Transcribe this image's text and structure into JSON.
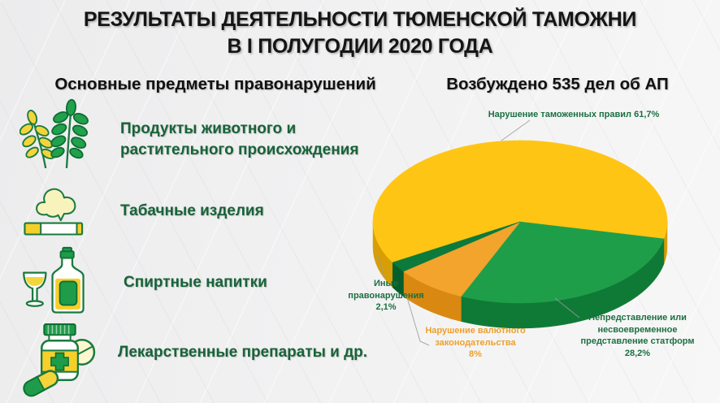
{
  "title": {
    "line1": "РЕЗУЛЬТАТЫ ДЕЯТЕЛЬНОСТИ ТЮМЕНСКОЙ ТАМОЖНИ",
    "line2": "В I ПОЛУГОДИИ 2020 ГОДА"
  },
  "left_panel": {
    "heading": "Основные предметы правонарушений",
    "items": [
      {
        "icon": "plant-leaves-icon",
        "label": "Продукты животного и растительного происхождения"
      },
      {
        "icon": "cigarette-icon",
        "label": "Табачные изделия"
      },
      {
        "icon": "alcohol-bottle-glass-icon",
        "label": "Спиртные напитки"
      },
      {
        "icon": "medicine-pills-icon",
        "label": "Лекарственные препараты и др."
      }
    ]
  },
  "right_panel": {
    "heading": "Возбуждено 535 дел об АП"
  },
  "chart_data": {
    "type": "pie",
    "style": "3d",
    "title": "Возбуждено 535 дел об АП",
    "total_cases": 535,
    "legend_position": "callouts",
    "slices": [
      {
        "label": "Нарушение таможенных правил",
        "value_pct": 61.7,
        "color": "#FFC515",
        "side_color": "#D79E06",
        "label_color": "#1C6F42",
        "callout_lines": [
          "Нарушение таможенных правил 61,7%"
        ]
      },
      {
        "label": "Непредставление или несвоевременное представление статформ",
        "value_pct": 28.2,
        "color": "#1F9E4A",
        "side_color": "#0F7A36",
        "label_color": "#1C6F42",
        "callout_lines": [
          "Непредставление или",
          "несвоевременное",
          "представление статформ",
          "28,2%"
        ]
      },
      {
        "label": "Нарушение валютного законодательства",
        "value_pct": 8,
        "color": "#F2A42C",
        "side_color": "#D98912",
        "label_color": "#EFA02C",
        "callout_lines": [
          "Нарушение валютного",
          "законодательства",
          "8%"
        ]
      },
      {
        "label": "Иные правонарушения",
        "value_pct": 2.1,
        "color": "#0C7A3A",
        "side_color": "#065F2B",
        "label_color": "#1C6F42",
        "callout_lines": [
          "Иные",
          "правонарушения",
          "2,1%"
        ]
      }
    ]
  }
}
